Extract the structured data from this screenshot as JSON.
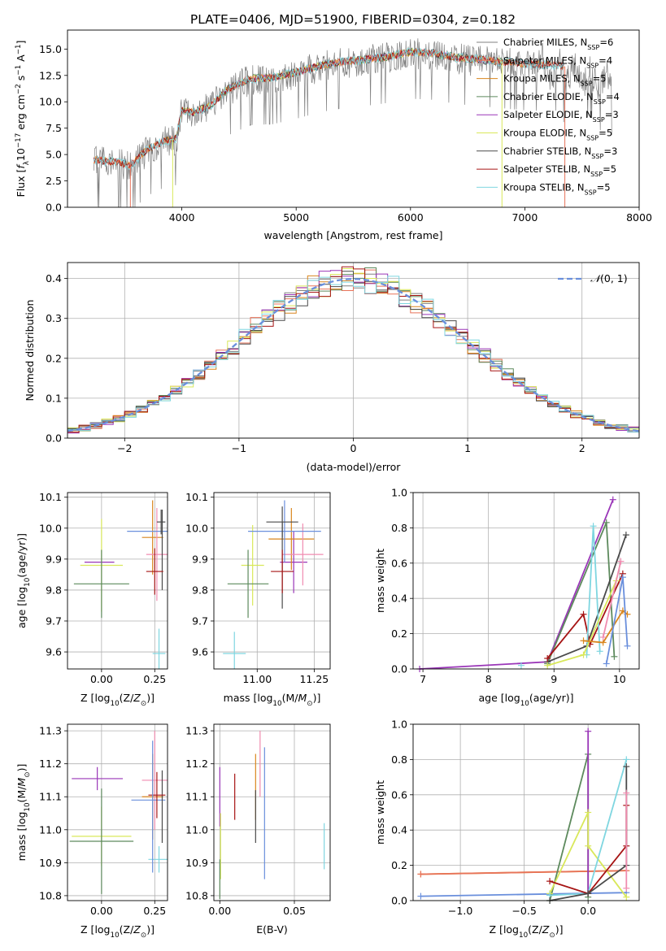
{
  "figure_title": "PLATE=0406, MJD=51900, FIBERID=0304, z=0.182",
  "colors": {
    "chabrier_miles": "#808080",
    "salpeter_miles": "#e8735a",
    "kroupa_miles": "#d9861e",
    "chabrier_elodie": "#5d8a5d",
    "salpeter_elodie": "#9a36b8",
    "kroupa_elodie": "#d9e85a",
    "chabrier_stelib": "#4a4a4a",
    "salpeter_stelib": "#a61414",
    "kroupa_stelib": "#7fd6e0",
    "pink": "#f08cb0",
    "blue": "#6a8fdc",
    "gaussian": "#6a8fdc",
    "grid": "#b0b0b0"
  },
  "chart_data": [
    {
      "id": "spectrum",
      "type": "line",
      "xlabel": "wavelength [Angstrom, rest frame]",
      "ylabel": "Flux [f_λ10^-17 erg cm^-2 s^-1 A^-1]",
      "xlim": [
        3000,
        8000
      ],
      "ylim": [
        0,
        16.8
      ],
      "xticks": [
        4000,
        5000,
        6000,
        7000,
        8000
      ],
      "yticks": [
        0.0,
        2.5,
        5.0,
        7.5,
        10.0,
        12.5,
        15.0
      ],
      "grid": false,
      "legend_position": "top-right",
      "continuum": {
        "x": [
          3230,
          3400,
          3550,
          3700,
          3850,
          3950,
          4000,
          4100,
          4250,
          4400,
          4600,
          4800,
          5000,
          5200,
          5400,
          5600,
          5800,
          6000,
          6200,
          6400,
          6600,
          6800,
          7000,
          7200,
          7500,
          7750
        ],
        "y": [
          4.5,
          4.3,
          4.0,
          5.5,
          6.3,
          6.5,
          9.2,
          9.0,
          9.6,
          11.2,
          12.2,
          12.3,
          12.8,
          13.4,
          13.8,
          14.0,
          14.3,
          14.7,
          14.6,
          14.2,
          14.0,
          13.8,
          13.6,
          13.5,
          13.2,
          13.0
        ]
      },
      "series": [
        {
          "name": "Chabrier MILES, N_SSP=6",
          "label_main": "Chabrier MILES, N",
          "nssp": "6",
          "color_key": "chabrier_miles",
          "x_range": [
            3230,
            7760
          ]
        },
        {
          "name": "Salpeter MILES, N_SSP=4",
          "label_main": "Salpeter MILES, N",
          "nssp": "4",
          "color_key": "salpeter_miles",
          "x_range": [
            3230,
            7350
          ]
        },
        {
          "name": "Kroupa MILES, N_SSP=5",
          "label_main": "Kroupa MILES, N",
          "nssp": "5",
          "color_key": "kroupa_miles",
          "x_range": [
            3230,
            7350
          ]
        },
        {
          "name": "Chabrier ELODIE, N_SSP=4",
          "label_main": "Chabrier ELODIE, N",
          "nssp": "4",
          "color_key": "chabrier_elodie",
          "x_range": [
            3920,
            6800
          ]
        },
        {
          "name": "Salpeter ELODIE, N_SSP=3",
          "label_main": "Salpeter ELODIE, N",
          "nssp": "3",
          "color_key": "salpeter_elodie",
          "x_range": [
            3920,
            6800
          ]
        },
        {
          "name": "Kroupa ELODIE, N_SSP=5",
          "label_main": "Kroupa ELODIE, N",
          "nssp": "5",
          "color_key": "kroupa_elodie",
          "x_range": [
            3920,
            6800
          ]
        },
        {
          "name": "Chabrier STELIB, N_SSP=3",
          "label_main": "Chabrier STELIB, N",
          "nssp": "3",
          "color_key": "chabrier_stelib",
          "x_range": [
            3230,
            7350
          ]
        },
        {
          "name": "Salpeter STELIB, N_SSP=5",
          "label_main": "Salpeter STELIB, N",
          "nssp": "5",
          "color_key": "salpeter_stelib",
          "x_range": [
            3230,
            7350
          ]
        },
        {
          "name": "Kroupa STELIB, N_SSP=5",
          "label_main": "Kroupa STELIB, N",
          "nssp": "5",
          "color_key": "kroupa_stelib",
          "x_range": [
            3230,
            7350
          ]
        }
      ]
    },
    {
      "id": "residuals",
      "type": "histogram",
      "xlabel": "(data-model)/error",
      "ylabel": "Normed distribution",
      "xlim": [
        -2.5,
        2.5
      ],
      "ylim": [
        0,
        0.44
      ],
      "xticks": [
        -2,
        -1,
        0,
        1,
        2
      ],
      "yticks": [
        0.0,
        0.1,
        0.2,
        0.3,
        0.4
      ],
      "grid": true,
      "legend": "N(0,1)",
      "gaussian": {
        "mu": 0,
        "sigma": 1
      },
      "bin_width": 0.1
    },
    {
      "id": "age_vs_Z",
      "type": "errorbar",
      "xlabel": "Z [log10(Z/Z☉)]",
      "ylabel": "age [log10(age/yr)]",
      "xlim": [
        -0.16,
        0.31
      ],
      "ylim": [
        9.545,
        10.115
      ],
      "xticks": [
        0.0,
        0.25
      ],
      "xtick_labels": [
        "0.00",
        "0.25"
      ],
      "yticks": [
        9.6,
        9.7,
        9.8,
        9.9,
        10.0,
        10.1
      ],
      "grid": true,
      "points": [
        {
          "x": 0.0,
          "y": 9.88,
          "xerr": 0.1,
          "yerr": 0.15,
          "color_key": "kroupa_elodie"
        },
        {
          "x": -0.01,
          "y": 9.89,
          "xerr": 0.07,
          "yerr": 0.0,
          "color_key": "salpeter_elodie"
        },
        {
          "x": 0.0,
          "y": 9.82,
          "xerr": 0.13,
          "yerr": 0.11,
          "color_key": "chabrier_elodie"
        },
        {
          "x": 0.24,
          "y": 9.97,
          "xerr": 0.05,
          "yerr": 0.12,
          "color_key": "kroupa_miles"
        },
        {
          "x": 0.26,
          "y": 9.915,
          "xerr": 0.05,
          "yerr": 0.15,
          "color_key": "pink"
        },
        {
          "x": 0.22,
          "y": 9.99,
          "xerr": 0.1,
          "yerr": 0.0,
          "color_key": "blue"
        },
        {
          "x": 0.28,
          "y": 10.02,
          "xerr": 0.02,
          "yerr": 0.04,
          "color_key": "chabrier_stelib"
        },
        {
          "x": 0.285,
          "y": 9.93,
          "xerr": 0.0,
          "yerr": 0.13,
          "color_key": "chabrier_stelib"
        },
        {
          "x": 0.25,
          "y": 9.86,
          "xerr": 0.04,
          "yerr": 0.075,
          "color_key": "salpeter_stelib"
        },
        {
          "x": 0.27,
          "y": 9.595,
          "xerr": 0.03,
          "yerr": 0.08,
          "color_key": "kroupa_stelib"
        }
      ]
    },
    {
      "id": "age_vs_mass",
      "type": "errorbar",
      "xlabel": "mass [log10(M/M☉)]",
      "ylabel": "",
      "xlim": [
        10.81,
        11.32
      ],
      "ylim": [
        9.545,
        10.115
      ],
      "xticks": [
        11.0,
        11.25
      ],
      "xtick_labels": [
        "11.00",
        "11.25"
      ],
      "yticks": [
        9.6,
        9.7,
        9.8,
        9.9,
        10.0,
        10.1
      ],
      "grid": true,
      "points": [
        {
          "x": 10.98,
          "y": 9.88,
          "xerr": 0.05,
          "yerr": 0.13,
          "color_key": "kroupa_elodie"
        },
        {
          "x": 10.96,
          "y": 9.82,
          "xerr": 0.09,
          "yerr": 0.11,
          "color_key": "chabrier_elodie"
        },
        {
          "x": 11.16,
          "y": 9.89,
          "xerr": 0.06,
          "yerr": 0.1,
          "color_key": "salpeter_elodie"
        },
        {
          "x": 11.15,
          "y": 9.965,
          "xerr": 0.1,
          "yerr": 0.1,
          "color_key": "kroupa_miles"
        },
        {
          "x": 11.2,
          "y": 9.915,
          "xerr": 0.09,
          "yerr": 0.1,
          "color_key": "pink"
        },
        {
          "x": 11.12,
          "y": 9.99,
          "xerr": 0.16,
          "yerr": 0.1,
          "color_key": "blue"
        },
        {
          "x": 11.11,
          "y": 10.02,
          "xerr": 0.07,
          "yerr": 0.05,
          "color_key": "chabrier_stelib"
        },
        {
          "x": 11.11,
          "y": 9.88,
          "xerr": 0.0,
          "yerr": 0.14,
          "color_key": "chabrier_stelib"
        },
        {
          "x": 11.11,
          "y": 9.86,
          "xerr": 0.05,
          "yerr": 0.07,
          "color_key": "salpeter_stelib"
        },
        {
          "x": 10.9,
          "y": 9.595,
          "xerr": 0.05,
          "yerr": 0.07,
          "color_key": "kroupa_stelib"
        }
      ]
    },
    {
      "id": "massweight_vs_age",
      "type": "line",
      "xlabel": "age [log10(age/yr)]",
      "ylabel": "mass weight",
      "xlim": [
        6.85,
        10.3
      ],
      "ylim": [
        0,
        1.0
      ],
      "xticks": [
        7,
        8,
        9,
        10
      ],
      "yticks": [
        0.0,
        0.2,
        0.4,
        0.6,
        0.8,
        1.0
      ],
      "grid": true,
      "series": [
        {
          "color_key": "salpeter_elodie",
          "x": [
            6.95,
            8.9,
            9.9
          ],
          "y": [
            0.0,
            0.04,
            0.96
          ]
        },
        {
          "color_key": "chabrier_elodie",
          "x": [
            8.9,
            9.8,
            9.92
          ],
          "y": [
            0.03,
            0.83,
            0.07
          ]
        },
        {
          "color_key": "chabrier_stelib",
          "x": [
            8.9,
            9.5,
            10.1
          ],
          "y": [
            0.04,
            0.13,
            0.76
          ]
        },
        {
          "color_key": "salpeter_stelib",
          "x": [
            8.9,
            9.45,
            9.55,
            10.05
          ],
          "y": [
            0.06,
            0.31,
            0.14,
            0.54
          ]
        },
        {
          "color_key": "kroupa_stelib",
          "x": [
            9.5,
            9.6,
            9.7
          ],
          "y": [
            0.08,
            0.81,
            0.1
          ]
        },
        {
          "color_key": "kroupa_elodie",
          "x": [
            8.9,
            9.45,
            9.95
          ],
          "y": [
            0.02,
            0.08,
            0.5
          ]
        },
        {
          "color_key": "kroupa_miles",
          "x": [
            9.45,
            9.75,
            10.05,
            10.12
          ],
          "y": [
            0.16,
            0.15,
            0.33,
            0.31
          ]
        },
        {
          "color_key": "pink",
          "x": [
            9.75,
            10.02
          ],
          "y": [
            0.18,
            0.61
          ]
        },
        {
          "color_key": "blue",
          "x": [
            9.8,
            10.05,
            10.12
          ],
          "y": [
            0.03,
            0.52,
            0.13
          ]
        },
        {
          "color_key": "kroupa_stelib",
          "x": [
            8.5
          ],
          "y": [
            0.02
          ]
        }
      ]
    },
    {
      "id": "mass_vs_Z",
      "type": "errorbar",
      "xlabel": "Z [log10(Z/Z☉)]",
      "ylabel": "mass [log10(M/M☉)]",
      "xlim": [
        -0.16,
        0.31
      ],
      "ylim": [
        10.785,
        11.32
      ],
      "xticks": [
        0.0,
        0.25
      ],
      "xtick_labels": [
        "0.00",
        "0.25"
      ],
      "yticks": [
        10.8,
        10.9,
        11.0,
        11.1,
        11.2,
        11.3
      ],
      "grid": true,
      "points": [
        {
          "x": 0.0,
          "y": 10.98,
          "xerr": 0.14,
          "yerr": 0.09,
          "color_key": "kroupa_elodie"
        },
        {
          "x": 0.0,
          "y": 10.965,
          "xerr": 0.15,
          "yerr": 0.16,
          "color_key": "chabrier_elodie"
        },
        {
          "x": -0.02,
          "y": 11.155,
          "xerr": 0.12,
          "yerr": 0.035,
          "color_key": "salpeter_elodie"
        },
        {
          "x": 0.24,
          "y": 11.1,
          "xerr": 0.05,
          "yerr": 0.13,
          "color_key": "kroupa_miles"
        },
        {
          "x": 0.25,
          "y": 11.15,
          "xerr": 0.06,
          "yerr": 0.15,
          "color_key": "pink"
        },
        {
          "x": 0.22,
          "y": 11.09,
          "xerr": 0.08,
          "yerr": 0.0,
          "color_key": "blue"
        },
        {
          "x": 0.285,
          "y": 11.07,
          "xerr": 0.0,
          "yerr": 0.11,
          "color_key": "chabrier_stelib"
        },
        {
          "x": 0.26,
          "y": 11.105,
          "xerr": 0.04,
          "yerr": 0.07,
          "color_key": "salpeter_stelib"
        },
        {
          "x": 0.27,
          "y": 10.91,
          "xerr": 0.05,
          "yerr": 0.04,
          "color_key": "kroupa_stelib"
        },
        {
          "x": 0.24,
          "y": 11.07,
          "xerr": 0.0,
          "yerr": 0.2,
          "color_key": "blue"
        }
      ]
    },
    {
      "id": "mass_vs_ebv",
      "type": "errorbar",
      "xlabel": "E(B-V)",
      "ylabel": "",
      "xlim": [
        -0.004,
        0.074
      ],
      "ylim": [
        10.785,
        11.32
      ],
      "xticks": [
        0.0,
        0.05
      ],
      "xtick_labels": [
        "0.00",
        "0.05"
      ],
      "yticks": [
        10.8,
        10.9,
        11.0,
        11.1,
        11.2,
        11.3
      ],
      "grid": true,
      "points": [
        {
          "x": 0.0,
          "y": 11.1,
          "xerr": 0.0,
          "yerr": 0.09,
          "color_key": "salpeter_elodie"
        },
        {
          "x": 0.0005,
          "y": 10.95,
          "xerr": 0.0,
          "yerr": 0.1,
          "color_key": "kroupa_elodie"
        },
        {
          "x": 0.0,
          "y": 10.85,
          "xerr": 0.0,
          "yerr": 0.06,
          "color_key": "chabrier_elodie"
        },
        {
          "x": 0.01,
          "y": 11.1,
          "xerr": 0.0,
          "yerr": 0.07,
          "color_key": "salpeter_stelib"
        },
        {
          "x": 0.024,
          "y": 11.13,
          "xerr": 0.0,
          "yerr": 0.1,
          "color_key": "kroupa_miles"
        },
        {
          "x": 0.024,
          "y": 11.04,
          "xerr": 0.0,
          "yerr": 0.08,
          "color_key": "chabrier_stelib"
        },
        {
          "x": 0.027,
          "y": 11.2,
          "xerr": 0.0,
          "yerr": 0.1,
          "color_key": "pink"
        },
        {
          "x": 0.03,
          "y": 11.05,
          "xerr": 0.0,
          "yerr": 0.2,
          "color_key": "blue"
        },
        {
          "x": 0.07,
          "y": 10.95,
          "xerr": 0.0,
          "yerr": 0.07,
          "color_key": "kroupa_stelib"
        }
      ]
    },
    {
      "id": "massweight_vs_Z",
      "type": "line",
      "xlabel": "Z [log10(Z/Z☉)]",
      "ylabel": "mass weight",
      "xlim": [
        -1.37,
        0.4
      ],
      "ylim": [
        0,
        1.0
      ],
      "xticks": [
        -1.0,
        -0.5,
        0.0
      ],
      "xtick_labels": [
        "−1.0",
        "−0.5",
        "0.0"
      ],
      "yticks": [
        0.0,
        0.2,
        0.4,
        0.6,
        0.8,
        1.0
      ],
      "grid": true,
      "series": [
        {
          "color_key": "kroupa_miles",
          "x": [
            -1.31,
            0.3
          ],
          "y": [
            0.15,
            0.17
          ]
        },
        {
          "color_key": "salpeter_miles",
          "x": [
            -1.31,
            0.3
          ],
          "y": [
            0.15,
            0.17
          ]
        },
        {
          "color_key": "blue",
          "x": [
            -1.31,
            0.3
          ],
          "y": [
            0.025,
            0.045
          ]
        },
        {
          "color_key": "chabrier_elodie",
          "x": [
            -0.3,
            0.0,
            0.0
          ],
          "y": [
            0.0,
            0.83,
            0.02
          ]
        },
        {
          "color_key": "salpeter_elodie",
          "x": [
            0.0,
            0.0
          ],
          "y": [
            0.04,
            0.96
          ]
        },
        {
          "color_key": "kroupa_elodie",
          "x": [
            -0.3,
            0.0,
            0.0,
            0.3
          ],
          "y": [
            0.04,
            0.5,
            0.31,
            0.02
          ]
        },
        {
          "color_key": "kroupa_stelib",
          "x": [
            -0.3,
            0.0,
            0.3
          ],
          "y": [
            0.03,
            0.04,
            0.8
          ]
        },
        {
          "color_key": "salpeter_stelib",
          "x": [
            -0.3,
            0.0,
            0.3,
            0.3
          ],
          "y": [
            0.11,
            0.04,
            0.31,
            0.54
          ]
        },
        {
          "color_key": "chabrier_stelib",
          "x": [
            -0.3,
            0.0,
            0.3,
            0.3
          ],
          "y": [
            0.0,
            0.04,
            0.2,
            0.76
          ]
        },
        {
          "color_key": "pink",
          "x": [
            0.3,
            0.3
          ],
          "y": [
            0.07,
            0.61
          ]
        }
      ]
    }
  ]
}
